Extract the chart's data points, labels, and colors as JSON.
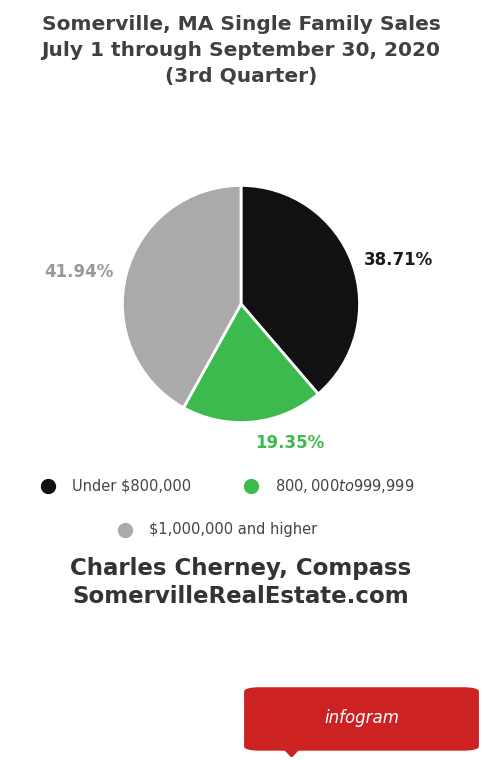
{
  "title_line1": "Somerville, MA Single Family Sales",
  "title_line2": "July 1 through September 30, 2020",
  "title_line3": "(3rd Quarter)",
  "slices": [
    38.71,
    19.35,
    41.94
  ],
  "slice_colors": [
    "#111111",
    "#3dba4e",
    "#aaaaaa"
  ],
  "slice_labels": [
    "38.71%",
    "19.35%",
    "41.94%"
  ],
  "label_colors": [
    "#1a1a1a",
    "#3dba4e",
    "#999999"
  ],
  "legend_labels": [
    "Under $800,000",
    "$800,000 to $999,999",
    "$1,000,000 and higher"
  ],
  "legend_colors": [
    "#111111",
    "#3dba4e",
    "#aaaaaa"
  ],
  "start_angle": 90,
  "footer_line1": "Charles Cherney, Compass",
  "footer_line2": "SomervilleRealEstate.com",
  "bg_color": "#ffffff",
  "title_color": "#404040",
  "footer_color": "#333333",
  "infogram_bg": "#cc2222",
  "infogram_text": "infogram"
}
